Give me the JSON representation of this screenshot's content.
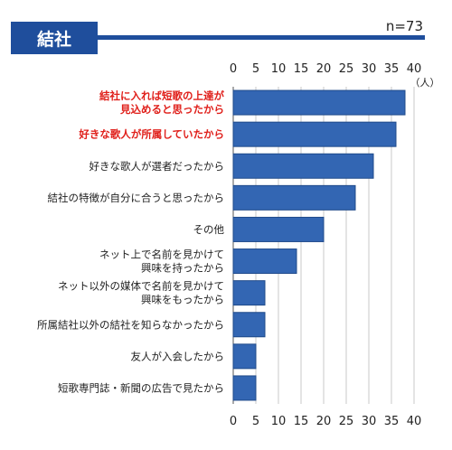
{
  "header": {
    "title": "結社",
    "sample_size": "n=73"
  },
  "colors": {
    "header": "#1f4e9c",
    "bar": "#3366b3",
    "bar_border": "#1f4a8a",
    "highlight_text": "#e0201b",
    "grid": "#c8c8c8"
  },
  "chart_data": {
    "type": "bar",
    "orientation": "horizontal",
    "title": "結社",
    "unit_label": "（人）",
    "xlim": [
      0,
      40
    ],
    "ticks": [
      "0",
      "5",
      "10",
      "15",
      "20",
      "25",
      "30",
      "35",
      "40"
    ],
    "grid": true,
    "categories": [
      {
        "lines": [
          "結社に入れば短歌の上達が",
          "見込めると思ったから"
        ],
        "highlight": true
      },
      {
        "lines": [
          "好きな歌人が所属していたから"
        ],
        "highlight": true
      },
      {
        "lines": [
          "好きな歌人が選者だったから"
        ],
        "highlight": false
      },
      {
        "lines": [
          "結社の特徴が自分に合うと思ったから"
        ],
        "highlight": false
      },
      {
        "lines": [
          "その他"
        ],
        "highlight": false
      },
      {
        "lines": [
          "ネット上で名前を見かけて",
          "興味を持ったから"
        ],
        "highlight": false
      },
      {
        "lines": [
          "ネット以外の媒体で名前を見かけて",
          "興味をもったから"
        ],
        "highlight": false
      },
      {
        "lines": [
          "所属結社以外の結社を知らなかったから"
        ],
        "highlight": false
      },
      {
        "lines": [
          "友人が入会したから"
        ],
        "highlight": false
      },
      {
        "lines": [
          "短歌専門誌・新聞の広告で見たから"
        ],
        "highlight": false
      }
    ],
    "values": [
      38,
      36,
      31,
      27,
      20,
      14,
      7,
      7,
      5,
      5
    ]
  }
}
